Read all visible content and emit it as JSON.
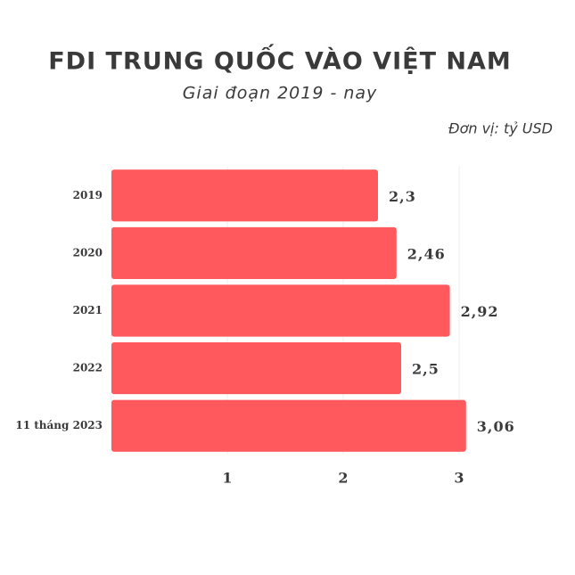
{
  "chart_data": {
    "type": "bar",
    "orientation": "horizontal",
    "title": "FDI TRUNG QUỐC VÀO VIỆT NAM",
    "subtitle": "Giai đoạn 2019 - nay",
    "unit_note": "Đơn vị: tỷ USD",
    "categories": [
      "2019",
      "2020",
      "2021",
      "2022",
      "11 tháng 2023"
    ],
    "values": [
      2.3,
      2.46,
      2.92,
      2.5,
      3.06
    ],
    "value_labels": [
      "2,3",
      "2,46",
      "2,92",
      "2,5",
      "3,06"
    ],
    "color": "#ff585d",
    "xlim": [
      0,
      3.5
    ],
    "xticks": [
      1,
      2,
      3
    ],
    "grid": true
  }
}
